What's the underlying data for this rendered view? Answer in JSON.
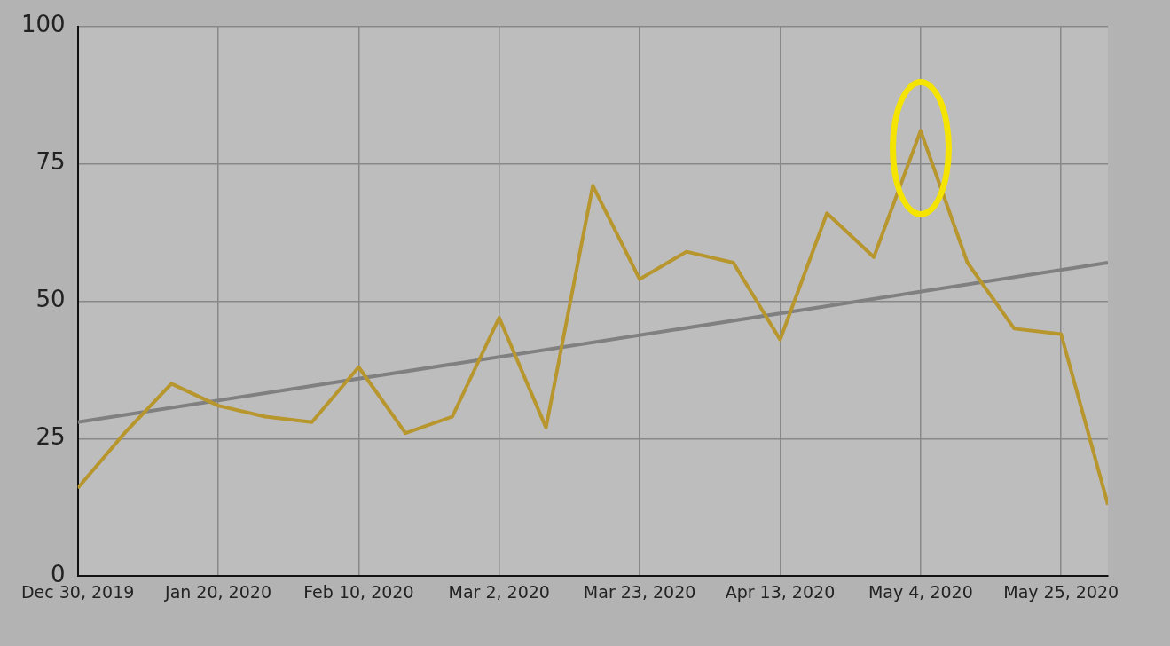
{
  "chart_data": {
    "type": "line",
    "x": [
      "2019-12-30",
      "2020-01-06",
      "2020-01-13",
      "2020-01-20",
      "2020-01-27",
      "2020-02-03",
      "2020-02-10",
      "2020-02-17",
      "2020-02-24",
      "2020-03-02",
      "2020-03-09",
      "2020-03-16",
      "2020-03-23",
      "2020-03-30",
      "2020-04-06",
      "2020-04-13",
      "2020-04-20",
      "2020-04-27",
      "2020-05-04",
      "2020-05-11",
      "2020-05-18",
      "2020-05-25",
      "2020-06-01"
    ],
    "series": [
      {
        "color": "#b8962e",
        "values": [
          16,
          26,
          35,
          31,
          29,
          28,
          38,
          26,
          29,
          47,
          27,
          71,
          54,
          59,
          57,
          43,
          66,
          58,
          81,
          57,
          45,
          44,
          13
        ]
      },
      {
        "type": "line",
        "color": "#808080",
        "x": [
          "2019-12-30",
          "2020-06-01"
        ],
        "values": [
          28,
          57
        ]
      }
    ],
    "xlim": [
      "2019-12-30",
      "2020-06-01"
    ],
    "xticks": [
      {
        "value": "2019-12-30",
        "label": "Dec 30, 2019"
      },
      {
        "value": "2020-01-20",
        "label": "Jan 20, 2020"
      },
      {
        "value": "2020-02-10",
        "label": "Feb 10, 2020"
      },
      {
        "value": "2020-03-02",
        "label": "Mar 2, 2020"
      },
      {
        "value": "2020-03-23",
        "label": "Mar 23, 2020"
      },
      {
        "value": "2020-04-13",
        "label": "Apr 13, 2020"
      },
      {
        "value": "2020-05-04",
        "label": "May 4, 2020"
      },
      {
        "value": "2020-05-25",
        "label": "May 25, 2020"
      }
    ],
    "ylim": [
      0,
      100
    ],
    "yticks": [
      0,
      25,
      50,
      75,
      100
    ],
    "grid": true,
    "legend": false,
    "marker": "none",
    "line_style": "solid"
  }
}
